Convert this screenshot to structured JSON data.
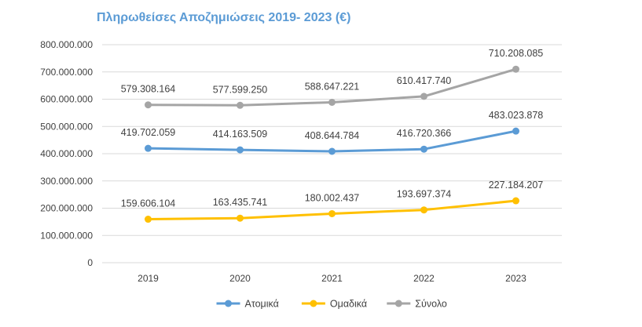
{
  "chart_data": {
    "type": "line",
    "title": "Πληρωθείσες Αποζημιώσεις 2019- 2023 (€)",
    "xlabel": "",
    "ylabel": "",
    "categories": [
      "2019",
      "2020",
      "2021",
      "2022",
      "2023"
    ],
    "ylim": [
      0,
      800000000
    ],
    "yticks": [
      "0",
      "100.000.000",
      "200.000.000",
      "300.000.000",
      "400.000.000",
      "500.000.000",
      "600.000.000",
      "700.000.000",
      "800.000.000"
    ],
    "ytick_values": [
      0,
      100000000,
      200000000,
      300000000,
      400000000,
      500000000,
      600000000,
      700000000,
      800000000
    ],
    "grid": true,
    "legend_position": "bottom",
    "series": [
      {
        "name": "Ατομικά",
        "color": "#5B9BD5",
        "values": [
          419702059,
          414163509,
          408644784,
          416720366,
          483023878
        ],
        "labels": [
          "419.702.059",
          "414.163.509",
          "408.644.784",
          "416.720.366",
          "483.023.878"
        ]
      },
      {
        "name": "Ομαδικά",
        "color": "#FFC000",
        "values": [
          159606104,
          163435741,
          180002437,
          193697374,
          227184207
        ],
        "labels": [
          "159.606.104",
          "163.435.741",
          "180.002.437",
          "193.697.374",
          "227.184.207"
        ]
      },
      {
        "name": "Σύνολο",
        "color": "#A5A5A5",
        "values": [
          579308164,
          577599250,
          588647221,
          610417740,
          710208085
        ],
        "labels": [
          "579.308.164",
          "577.599.250",
          "588.647.221",
          "610.417.740",
          "710.208.085"
        ]
      }
    ]
  }
}
